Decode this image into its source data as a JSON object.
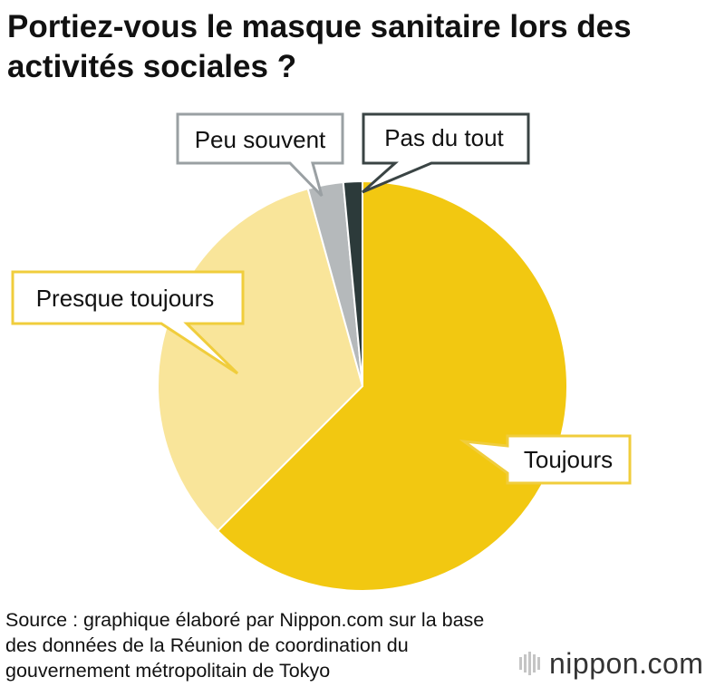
{
  "title": "Portiez-vous le masque sanitaire lors des activités sociales ?",
  "chart_data": {
    "type": "pie",
    "title": "Portiez-vous le masque sanitaire lors des activités sociales ?",
    "labels": [
      "Toujours",
      "Presque toujours",
      "Peu souvent",
      "Pas du tout"
    ],
    "values": [
      62.5,
      33.2,
      2.8,
      1.5
    ],
    "colors": [
      "#f2c811",
      "#f9e59a",
      "#b5b9bb",
      "#2c3a3a"
    ],
    "start": "12 o'clock",
    "direction": "clockwise",
    "legend": "none"
  },
  "source": "Source : graphique élaboré par Nippon.com sur la base des données de la Réunion de coordination du gouvernement métropolitain de Tokyo",
  "logo": {
    "name": "nippon",
    "suffix": ".com"
  }
}
